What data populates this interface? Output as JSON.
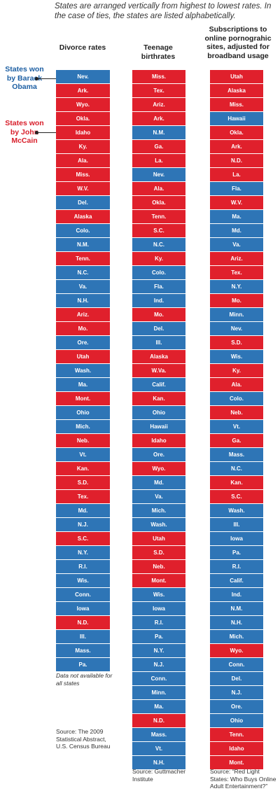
{
  "intro": "States are arranged vertically from highest to lowest rates. In the case of ties, the states are listed alphabetically.",
  "colors": {
    "obama": "#2e75b6",
    "mccain": "#e0202c"
  },
  "legend": {
    "obama": "States won by Barack Obama",
    "mccain": "States won by John McCain"
  },
  "columns": [
    {
      "header": "Divorce rates",
      "note": "Data not available for all states",
      "source": "Source: The 2009 Statistical Abstract, U.S. Census Bureau",
      "states": [
        {
          "label": "Nev.",
          "party": "obama"
        },
        {
          "label": "Ark.",
          "party": "mccain"
        },
        {
          "label": "Wyo.",
          "party": "mccain"
        },
        {
          "label": "Okla.",
          "party": "mccain"
        },
        {
          "label": "Idaho",
          "party": "mccain"
        },
        {
          "label": "Ky.",
          "party": "mccain"
        },
        {
          "label": "Ala.",
          "party": "mccain"
        },
        {
          "label": "Miss.",
          "party": "mccain"
        },
        {
          "label": "W.V.",
          "party": "mccain"
        },
        {
          "label": "Del.",
          "party": "obama"
        },
        {
          "label": "Alaska",
          "party": "mccain"
        },
        {
          "label": "Colo.",
          "party": "obama"
        },
        {
          "label": "N.M.",
          "party": "obama"
        },
        {
          "label": "Tenn.",
          "party": "mccain"
        },
        {
          "label": "N.C.",
          "party": "obama"
        },
        {
          "label": "Va.",
          "party": "obama"
        },
        {
          "label": "N.H.",
          "party": "obama"
        },
        {
          "label": "Ariz.",
          "party": "mccain"
        },
        {
          "label": "Mo.",
          "party": "mccain"
        },
        {
          "label": "Ore.",
          "party": "obama"
        },
        {
          "label": "Utah",
          "party": "mccain"
        },
        {
          "label": "Wash.",
          "party": "obama"
        },
        {
          "label": "Ma.",
          "party": "obama"
        },
        {
          "label": "Mont.",
          "party": "mccain"
        },
        {
          "label": "Ohio",
          "party": "obama"
        },
        {
          "label": "Mich.",
          "party": "obama"
        },
        {
          "label": "Neb.",
          "party": "mccain"
        },
        {
          "label": "Vt.",
          "party": "obama"
        },
        {
          "label": "Kan.",
          "party": "mccain"
        },
        {
          "label": "S.D.",
          "party": "mccain"
        },
        {
          "label": "Tex.",
          "party": "mccain"
        },
        {
          "label": "Md.",
          "party": "obama"
        },
        {
          "label": "N.J.",
          "party": "obama"
        },
        {
          "label": "S.C.",
          "party": "mccain"
        },
        {
          "label": "N.Y.",
          "party": "obama"
        },
        {
          "label": "R.I.",
          "party": "obama"
        },
        {
          "label": "Wis.",
          "party": "obama"
        },
        {
          "label": "Conn.",
          "party": "obama"
        },
        {
          "label": "Iowa",
          "party": "obama"
        },
        {
          "label": "N.D.",
          "party": "mccain"
        },
        {
          "label": "Ill.",
          "party": "obama"
        },
        {
          "label": "Mass.",
          "party": "obama"
        },
        {
          "label": "Pa.",
          "party": "obama"
        }
      ]
    },
    {
      "header": "Teenage birthrates",
      "note": "",
      "source": "Source: Guttmacher Institute",
      "states": [
        {
          "label": "Miss.",
          "party": "mccain"
        },
        {
          "label": "Tex.",
          "party": "mccain"
        },
        {
          "label": "Ariz.",
          "party": "mccain"
        },
        {
          "label": "Ark.",
          "party": "mccain"
        },
        {
          "label": "N.M.",
          "party": "obama"
        },
        {
          "label": "Ga.",
          "party": "mccain"
        },
        {
          "label": "La.",
          "party": "mccain"
        },
        {
          "label": "Nev.",
          "party": "obama"
        },
        {
          "label": "Ala.",
          "party": "mccain"
        },
        {
          "label": "Okla.",
          "party": "mccain"
        },
        {
          "label": "Tenn.",
          "party": "mccain"
        },
        {
          "label": "S.C.",
          "party": "mccain"
        },
        {
          "label": "N.C.",
          "party": "obama"
        },
        {
          "label": "Ky.",
          "party": "mccain"
        },
        {
          "label": "Colo.",
          "party": "obama"
        },
        {
          "label": "Fla.",
          "party": "obama"
        },
        {
          "label": "Ind.",
          "party": "obama"
        },
        {
          "label": "Mo.",
          "party": "mccain"
        },
        {
          "label": "Del.",
          "party": "obama"
        },
        {
          "label": "Ill.",
          "party": "obama"
        },
        {
          "label": "Alaska",
          "party": "mccain"
        },
        {
          "label": "W.Va.",
          "party": "mccain"
        },
        {
          "label": "Calif.",
          "party": "obama"
        },
        {
          "label": "Kan.",
          "party": "mccain"
        },
        {
          "label": "Ohio",
          "party": "obama"
        },
        {
          "label": "Hawaii",
          "party": "obama"
        },
        {
          "label": "Idaho",
          "party": "mccain"
        },
        {
          "label": "Ore.",
          "party": "obama"
        },
        {
          "label": "Wyo.",
          "party": "mccain"
        },
        {
          "label": "Md.",
          "party": "obama"
        },
        {
          "label": "Va.",
          "party": "obama"
        },
        {
          "label": "Mich.",
          "party": "obama"
        },
        {
          "label": "Wash.",
          "party": "obama"
        },
        {
          "label": "Utah",
          "party": "mccain"
        },
        {
          "label": "S.D.",
          "party": "mccain"
        },
        {
          "label": "Neb.",
          "party": "mccain"
        },
        {
          "label": "Mont.",
          "party": "mccain"
        },
        {
          "label": "Wis.",
          "party": "obama"
        },
        {
          "label": "Iowa",
          "party": "obama"
        },
        {
          "label": "R.I.",
          "party": "obama"
        },
        {
          "label": "Pa.",
          "party": "obama"
        },
        {
          "label": "N.Y.",
          "party": "obama"
        },
        {
          "label": "N.J.",
          "party": "obama"
        },
        {
          "label": "Conn.",
          "party": "obama"
        },
        {
          "label": "Minn.",
          "party": "obama"
        },
        {
          "label": "Ma.",
          "party": "obama"
        },
        {
          "label": "N.D.",
          "party": "mccain"
        },
        {
          "label": "Mass.",
          "party": "obama"
        },
        {
          "label": "Vt.",
          "party": "obama"
        },
        {
          "label": "N.H.",
          "party": "obama"
        }
      ]
    },
    {
      "header": "Subscriptions to online pornograhic sites, adjusted for broadband usage",
      "note": "",
      "source": "Source: “Red Light States: Who Buys Online Adult Entertainment?”",
      "states": [
        {
          "label": "Utah",
          "party": "mccain"
        },
        {
          "label": "Alaska",
          "party": "mccain"
        },
        {
          "label": "Miss.",
          "party": "mccain"
        },
        {
          "label": "Hawaii",
          "party": "obama"
        },
        {
          "label": "Okla.",
          "party": "mccain"
        },
        {
          "label": "Ark.",
          "party": "mccain"
        },
        {
          "label": "N.D.",
          "party": "mccain"
        },
        {
          "label": "La.",
          "party": "mccain"
        },
        {
          "label": "Fla.",
          "party": "obama"
        },
        {
          "label": "W.V.",
          "party": "mccain"
        },
        {
          "label": "Ma.",
          "party": "obama"
        },
        {
          "label": "Md.",
          "party": "obama"
        },
        {
          "label": "Va.",
          "party": "obama"
        },
        {
          "label": "Ariz.",
          "party": "mccain"
        },
        {
          "label": "Tex.",
          "party": "mccain"
        },
        {
          "label": "N.Y.",
          "party": "obama"
        },
        {
          "label": "Mo.",
          "party": "mccain"
        },
        {
          "label": "Minn.",
          "party": "obama"
        },
        {
          "label": "Nev.",
          "party": "obama"
        },
        {
          "label": "S.D.",
          "party": "mccain"
        },
        {
          "label": "Wis.",
          "party": "obama"
        },
        {
          "label": "Ky.",
          "party": "mccain"
        },
        {
          "label": "Ala.",
          "party": "mccain"
        },
        {
          "label": "Colo.",
          "party": "obama"
        },
        {
          "label": "Neb.",
          "party": "mccain"
        },
        {
          "label": "Vt.",
          "party": "obama"
        },
        {
          "label": "Ga.",
          "party": "mccain"
        },
        {
          "label": "Mass.",
          "party": "obama"
        },
        {
          "label": "N.C.",
          "party": "obama"
        },
        {
          "label": "Kan.",
          "party": "mccain"
        },
        {
          "label": "S.C.",
          "party": "mccain"
        },
        {
          "label": "Wash.",
          "party": "obama"
        },
        {
          "label": "Ill.",
          "party": "obama"
        },
        {
          "label": "Iowa",
          "party": "obama"
        },
        {
          "label": "Pa.",
          "party": "obama"
        },
        {
          "label": "R.I.",
          "party": "obama"
        },
        {
          "label": "Calif.",
          "party": "obama"
        },
        {
          "label": "Ind.",
          "party": "obama"
        },
        {
          "label": "N.M.",
          "party": "obama"
        },
        {
          "label": "N.H.",
          "party": "obama"
        },
        {
          "label": "Mich.",
          "party": "obama"
        },
        {
          "label": "Wyo.",
          "party": "mccain"
        },
        {
          "label": "Conn.",
          "party": "obama"
        },
        {
          "label": "Del.",
          "party": "obama"
        },
        {
          "label": "N.J.",
          "party": "obama"
        },
        {
          "label": "Ore.",
          "party": "obama"
        },
        {
          "label": "Ohio",
          "party": "obama"
        },
        {
          "label": "Tenn.",
          "party": "mccain"
        },
        {
          "label": "Idaho",
          "party": "mccain"
        },
        {
          "label": "Mont.",
          "party": "mccain"
        }
      ]
    }
  ]
}
